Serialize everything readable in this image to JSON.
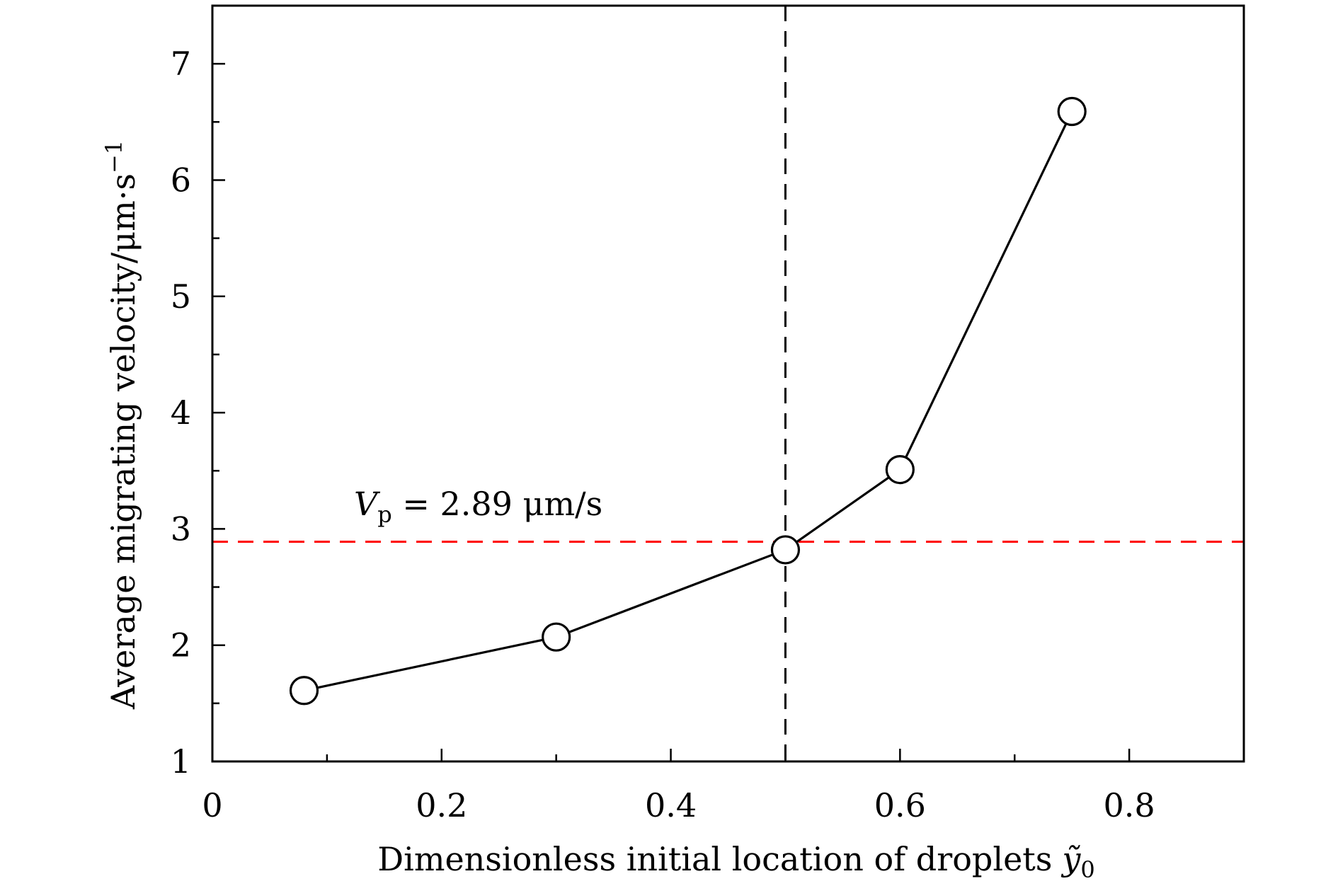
{
  "chart_data": {
    "type": "line",
    "title": "",
    "xlabel": "Dimensionless initial location of droplets",
    "xlabel_symbol": "ỹ",
    "xlabel_subscript": "0",
    "ylabel": "Average migrating velocity/μm·s",
    "ylabel_superscript": "−1",
    "xlim": [
      0,
      0.9
    ],
    "ylim": [
      1,
      7.5
    ],
    "x_ticks": [
      0,
      0.2,
      0.4,
      0.6,
      0.8
    ],
    "x_tick_labels": [
      "0",
      "0.2",
      "0.4",
      "0.6",
      "0.8"
    ],
    "x_minor_ticks": [
      0.1,
      0.3,
      0.5,
      0.7
    ],
    "y_ticks": [
      1,
      2,
      3,
      4,
      5,
      6,
      7
    ],
    "y_tick_labels": [
      "1",
      "2",
      "3",
      "4",
      "5",
      "6",
      "7"
    ],
    "y_minor_ticks": [
      1.5,
      2.5,
      3.5,
      4.5,
      5.5,
      6.5
    ],
    "series": [
      {
        "name": "Average migrating velocity",
        "x": [
          0.08,
          0.3,
          0.5,
          0.6,
          0.75
        ],
        "y": [
          1.61,
          2.07,
          2.82,
          3.51,
          6.59
        ],
        "color": "#000000",
        "marker": "open-circle"
      }
    ],
    "reference_lines": [
      {
        "orientation": "horizontal",
        "value": 2.89,
        "color": "#ff0000",
        "style": "dashed"
      },
      {
        "orientation": "vertical",
        "value": 0.5,
        "color": "#000000",
        "style": "dashed"
      }
    ],
    "annotations": [
      {
        "symbol": "V",
        "subscript": "p",
        "text": " = 2.89 μm/s"
      }
    ]
  }
}
